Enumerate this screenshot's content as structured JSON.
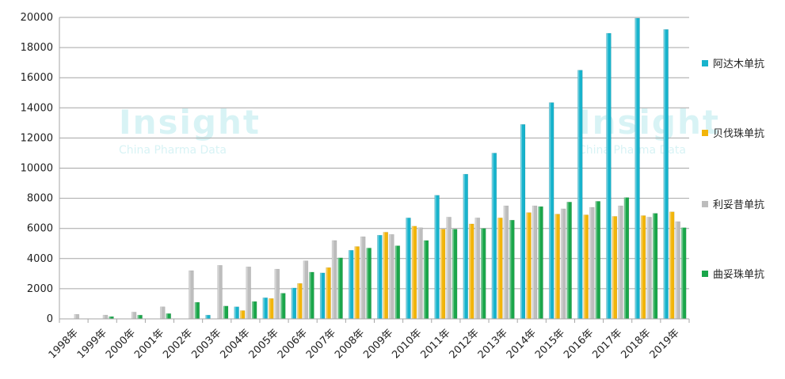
{
  "chart_data": {
    "type": "bar",
    "categories": [
      "1998年",
      "1999年",
      "2000年",
      "2001年",
      "2002年",
      "2003年",
      "2004年",
      "2005年",
      "2006年",
      "2007年",
      "2008年",
      "2009年",
      "2010年",
      "2011年",
      "2012年",
      "2013年",
      "2014年",
      "2015年",
      "2016年",
      "2017年",
      "2018年",
      "2019年"
    ],
    "ylim": [
      0,
      20000
    ],
    "yticks": [
      "0",
      "2000",
      "4000",
      "6000",
      "8000",
      "10000",
      "12000",
      "14000",
      "16000",
      "18000",
      "20000"
    ],
    "grid": true,
    "legend_position": "right",
    "series": [
      {
        "name": "阿达木单抗",
        "color": "#17b3cc",
        "values": [
          0,
          0,
          0,
          0,
          0,
          250,
          800,
          1400,
          2050,
          3050,
          4550,
          5550,
          6700,
          8200,
          9600,
          11000,
          12900,
          14350,
          16500,
          18950,
          19950,
          19200
        ]
      },
      {
        "name": "贝伐珠单抗",
        "color": "#f2b50a",
        "values": [
          0,
          0,
          0,
          0,
          0,
          0,
          550,
          1350,
          2350,
          3400,
          4800,
          5750,
          6150,
          5950,
          6300,
          6700,
          7050,
          6950,
          6900,
          6800,
          6850,
          7100
        ]
      },
      {
        "name": "利妥昔单抗",
        "color": "#bdbdbd",
        "values": [
          300,
          250,
          450,
          800,
          3200,
          3550,
          3450,
          3300,
          3850,
          5200,
          5450,
          5600,
          6050,
          6750,
          6700,
          7500,
          7500,
          7300,
          7400,
          7500,
          6750,
          6450
        ]
      },
      {
        "name": "曲妥珠单抗",
        "color": "#1aa64a",
        "values": [
          0,
          150,
          250,
          350,
          1100,
          850,
          1150,
          1700,
          3100,
          4050,
          4700,
          4850,
          5200,
          5950,
          6000,
          6550,
          7450,
          7750,
          7800,
          8050,
          7000,
          6050
        ]
      }
    ]
  },
  "watermark": {
    "brand": "Insight",
    "tagline": "China Pharma Data"
  }
}
